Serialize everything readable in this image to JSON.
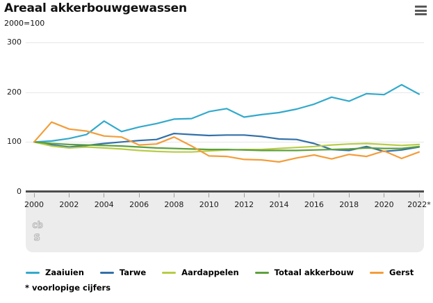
{
  "header": {
    "title": "Areaal akkerbouwgewassen",
    "subtitle": "2000=100",
    "menu_icon": "hamburger-menu-icon"
  },
  "footnote": "* voorlopige cijfers",
  "logo": {
    "name": "cbs-logo",
    "text_top": "cb",
    "text_bottom": "s"
  },
  "ui_colors": {
    "axis": "#4d4d4d",
    "gridline": "#e7e7e7",
    "band": "#ececec"
  },
  "chart_data": {
    "type": "line",
    "title": "Areaal akkerbouwgewassen",
    "subtitle": "2000=100",
    "xlabel": "",
    "ylabel": "",
    "ylim": [
      0,
      300
    ],
    "y_ticks": [
      0,
      100,
      200,
      300
    ],
    "grid": "horizontal",
    "legend_position": "bottom",
    "x": [
      2000,
      2001,
      2002,
      2003,
      2004,
      2005,
      2006,
      2007,
      2008,
      2009,
      2010,
      2011,
      2012,
      2013,
      2014,
      2015,
      2016,
      2017,
      2018,
      2019,
      2020,
      2021,
      2022
    ],
    "x_tick_labels": [
      "2000",
      "2002",
      "2004",
      "2006",
      "2008",
      "2010",
      "2012",
      "2014",
      "2016",
      "2018",
      "2020",
      "2022*"
    ],
    "series": [
      {
        "name": "Zaaiuien",
        "color": "#33a9cc",
        "values": [
          100,
          102,
          107,
          115,
          142,
          121,
          130,
          137,
          146,
          147,
          161,
          167,
          150,
          155,
          159,
          166,
          176,
          190,
          182,
          197,
          195,
          215,
          196
        ]
      },
      {
        "name": "Tarwe",
        "color": "#3370a8",
        "values": [
          100,
          94,
          90,
          93,
          97,
          100,
          103,
          105,
          117,
          115,
          113,
          114,
          114,
          111,
          106,
          105,
          97,
          85,
          83,
          91,
          81,
          84,
          90
        ]
      },
      {
        "name": "Aardappelen",
        "color": "#b8cc46",
        "values": [
          100,
          92,
          88,
          90,
          88,
          86,
          83,
          81,
          80,
          80,
          82,
          84,
          85,
          85,
          87,
          89,
          91,
          94,
          96,
          97,
          95,
          93,
          95
        ]
      },
      {
        "name": "Totaal akkerbouw",
        "color": "#5da03c",
        "values": [
          100,
          97,
          95,
          94,
          93,
          92,
          90,
          88,
          87,
          86,
          85,
          85,
          84,
          83,
          83,
          83,
          84,
          85,
          86,
          88,
          87,
          87,
          91
        ]
      },
      {
        "name": "Gerst",
        "color": "#f39d3a",
        "values": [
          100,
          140,
          126,
          122,
          112,
          110,
          94,
          96,
          110,
          92,
          72,
          71,
          65,
          64,
          60,
          68,
          74,
          66,
          75,
          71,
          82,
          67,
          80
        ]
      }
    ]
  }
}
